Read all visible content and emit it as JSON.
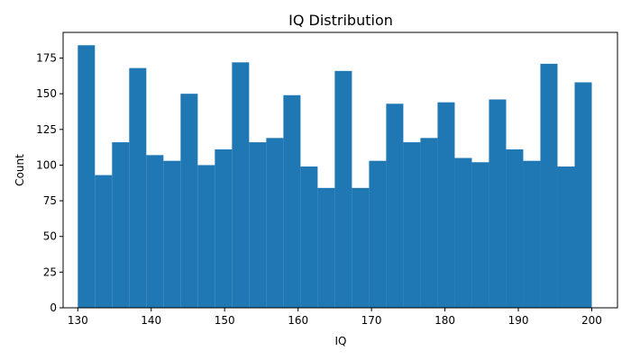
{
  "chart_data": {
    "type": "bar",
    "title": "IQ Distribution",
    "xlabel": "IQ",
    "ylabel": "Count",
    "xlim": [
      128,
      203.5
    ],
    "ylim": [
      0,
      193
    ],
    "x_ticks": [
      130,
      140,
      150,
      160,
      170,
      180,
      190,
      200
    ],
    "y_ticks": [
      0,
      25,
      50,
      75,
      100,
      125,
      150,
      175
    ],
    "grid": false,
    "bar_color": "#1f77b4",
    "bins": {
      "start": 130,
      "end": 200,
      "count": [
        184,
        93,
        116,
        168,
        107,
        103,
        150,
        100,
        111,
        172,
        116,
        119,
        149,
        99,
        84,
        166,
        84,
        103,
        143,
        116,
        119,
        144,
        105,
        102,
        146,
        111,
        103,
        171,
        99,
        158
      ]
    }
  }
}
